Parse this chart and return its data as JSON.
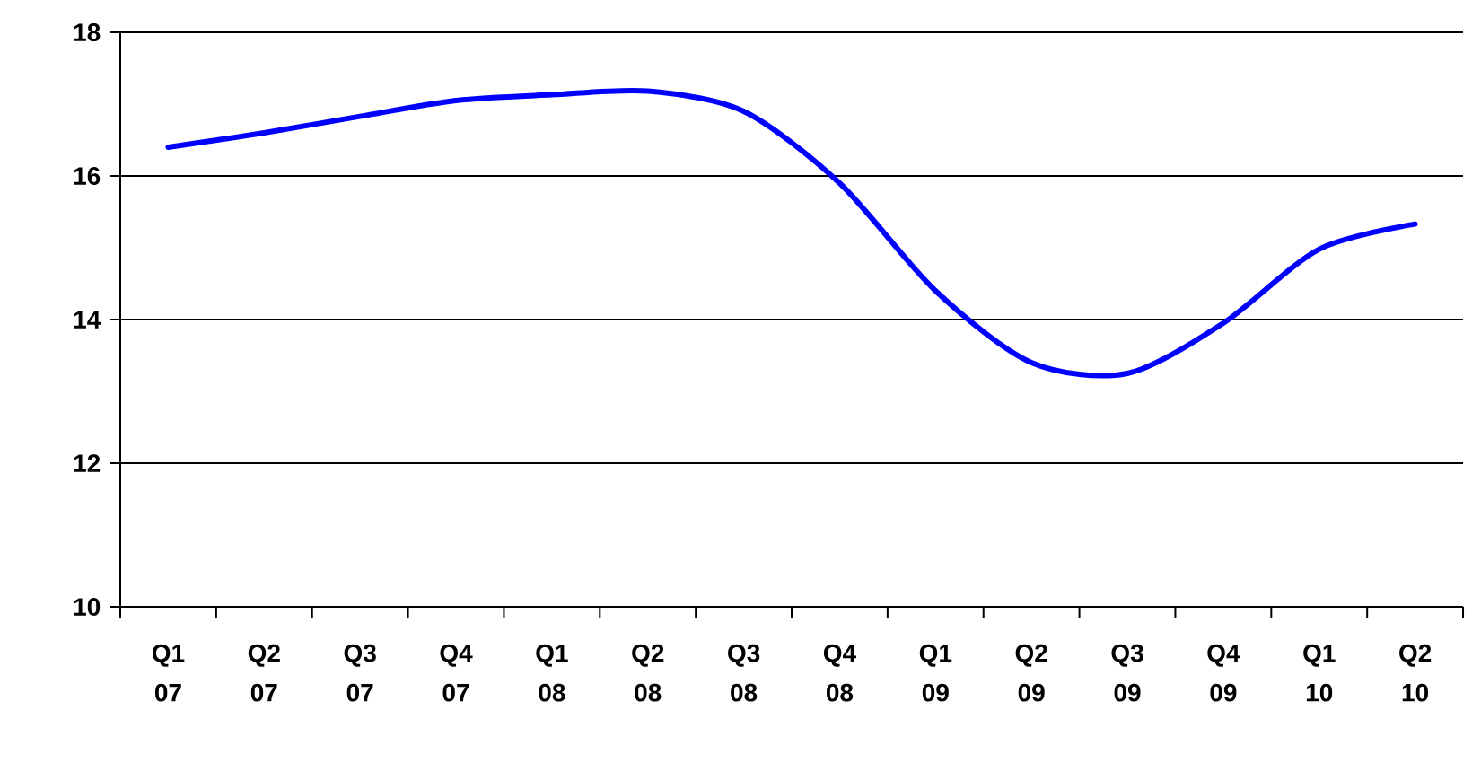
{
  "chart_data": {
    "type": "line",
    "categories": [
      "Q1 07",
      "Q2 07",
      "Q3 07",
      "Q4 07",
      "Q1 08",
      "Q2 08",
      "Q3 08",
      "Q4 08",
      "Q1 09",
      "Q2 09",
      "Q3 09",
      "Q4 09",
      "Q1 10",
      "Q2 10"
    ],
    "series": [
      {
        "color": "#0000ff",
        "values": [
          16.4,
          16.6,
          16.83,
          17.05,
          17.13,
          17.18,
          16.9,
          15.9,
          14.4,
          13.4,
          13.25,
          13.95,
          14.98,
          15.33
        ]
      }
    ],
    "ylim": [
      10,
      18
    ],
    "yticks": [
      10,
      12,
      14,
      16,
      18
    ],
    "grid": "y",
    "marker": "none",
    "line_style": "solid"
  }
}
